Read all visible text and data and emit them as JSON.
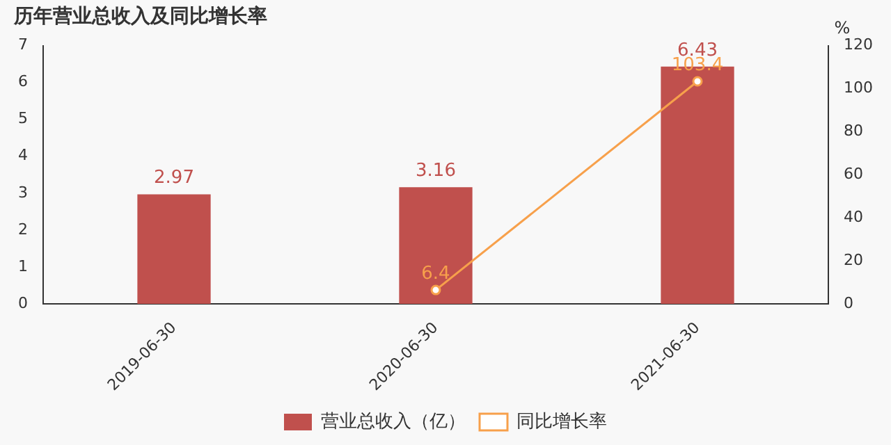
{
  "chart_data": {
    "type": "bar",
    "title": "历年营业总收入及同比增长率",
    "y2label": "%",
    "categories": [
      "2019-06-30",
      "2020-06-30",
      "2021-06-30"
    ],
    "series": [
      {
        "name": "营业总收入（亿）",
        "color": "#c0504d",
        "values": [
          2.97,
          3.16,
          6.43
        ]
      },
      {
        "name": "同比增长率",
        "type": "line",
        "axis": "y2",
        "color": "#f7a04b",
        "marker": "circle",
        "values": [
          null,
          6.4,
          103.4
        ]
      }
    ],
    "ylim": [
      0,
      7
    ],
    "yticks": [
      0,
      1,
      2,
      3,
      4,
      5,
      6,
      7
    ],
    "y2lim": [
      0,
      120
    ],
    "y2ticks": [
      0,
      20,
      40,
      60,
      80,
      100,
      120
    ],
    "grid": false,
    "legend": "bottom",
    "data_labels": true
  }
}
